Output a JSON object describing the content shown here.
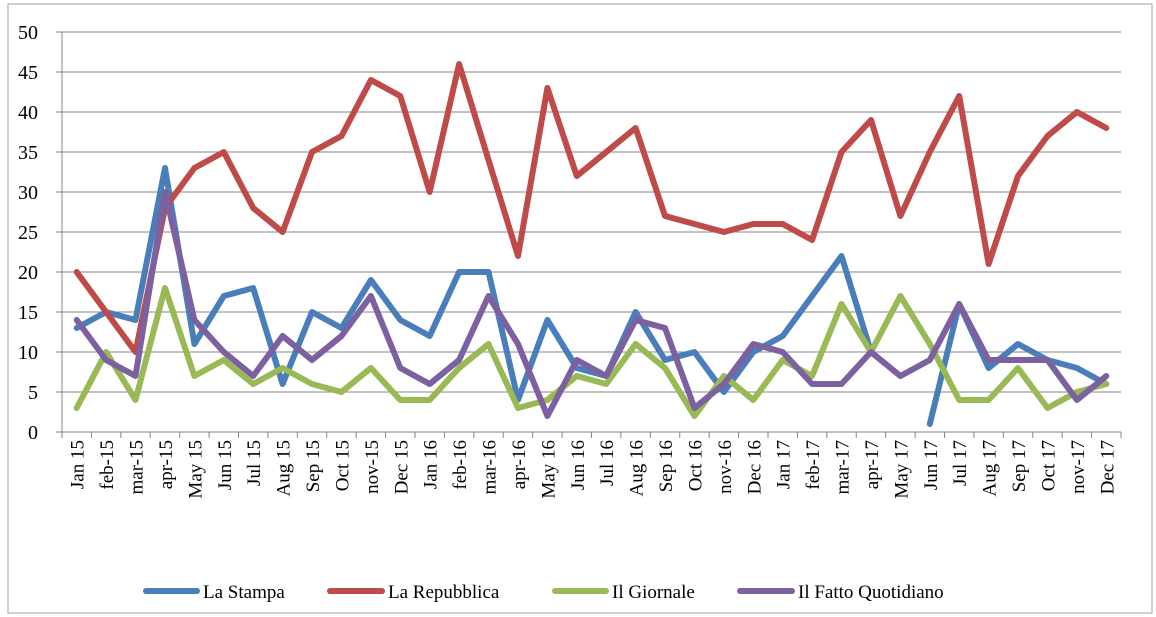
{
  "chart_data": {
    "type": "line",
    "title": "",
    "xlabel": "",
    "ylabel": "",
    "ylim": [
      0,
      50
    ],
    "yticks": [
      0,
      5,
      10,
      15,
      20,
      25,
      30,
      35,
      40,
      45,
      50
    ],
    "grid": true,
    "legend_position": "bottom",
    "categories": [
      "Jan 15",
      "feb-15",
      "mar-15",
      "apr-15",
      "May 15",
      "Jun 15",
      "Jul 15",
      "Aug 15",
      "Sep 15",
      "Oct 15",
      "nov-15",
      "Dec 15",
      "Jan 16",
      "feb-16",
      "mar-16",
      "apr-16",
      "May 16",
      "Jun 16",
      "Jul 16",
      "Aug 16",
      "Sep 16",
      "Oct 16",
      "nov-16",
      "Dec 16",
      "Jan 17",
      "feb-17",
      "mar-17",
      "apr-17",
      "May 17",
      "Jun 17",
      "Jul 17",
      "Aug 17",
      "Sep 17",
      "Oct 17",
      "nov-17",
      "Dec 17"
    ],
    "series": [
      {
        "name": "La Stampa",
        "color": "#4a7ebb",
        "values": [
          13,
          15,
          14,
          33,
          11,
          17,
          18,
          6,
          15,
          13,
          19,
          14,
          12,
          20,
          20,
          4,
          14,
          8,
          7,
          15,
          9,
          10,
          5,
          10,
          12,
          17,
          22,
          10,
          null,
          1,
          16,
          8,
          11,
          9,
          8,
          6
        ]
      },
      {
        "name": "La Repubblica",
        "color": "#be4b48",
        "values": [
          20,
          15,
          10,
          28,
          33,
          35,
          28,
          25,
          35,
          37,
          44,
          42,
          30,
          46,
          34,
          22,
          43,
          32,
          35,
          38,
          27,
          26,
          25,
          26,
          26,
          24,
          35,
          39,
          27,
          35,
          42,
          21,
          32,
          37,
          40,
          38
        ]
      },
      {
        "name": "Il Giornale",
        "color": "#98b954",
        "values": [
          3,
          10,
          4,
          18,
          7,
          9,
          6,
          8,
          6,
          5,
          8,
          4,
          4,
          8,
          11,
          3,
          4,
          7,
          6,
          11,
          8,
          2,
          7,
          4,
          9,
          7,
          16,
          10,
          17,
          11,
          4,
          4,
          8,
          3,
          5,
          6
        ]
      },
      {
        "name": "Il Fatto Quotidiano",
        "color": "#7d60a0",
        "values": [
          14,
          9,
          7,
          30,
          14,
          10,
          7,
          12,
          9,
          12,
          17,
          8,
          6,
          9,
          17,
          11,
          2,
          9,
          7,
          14,
          13,
          3,
          6,
          11,
          10,
          6,
          6,
          10,
          7,
          9,
          16,
          9,
          9,
          9,
          4,
          7
        ]
      }
    ]
  }
}
